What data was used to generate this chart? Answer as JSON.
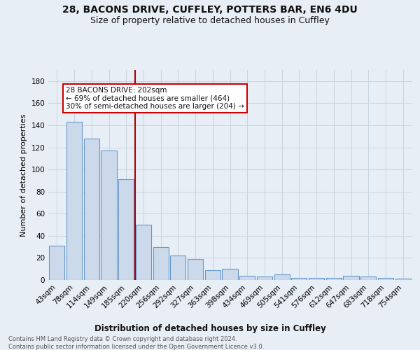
{
  "title1": "28, BACONS DRIVE, CUFFLEY, POTTERS BAR, EN6 4DU",
  "title2": "Size of property relative to detached houses in Cuffley",
  "xlabel": "Distribution of detached houses by size in Cuffley",
  "ylabel": "Number of detached properties",
  "categories": [
    "43sqm",
    "78sqm",
    "114sqm",
    "149sqm",
    "185sqm",
    "220sqm",
    "256sqm",
    "292sqm",
    "327sqm",
    "363sqm",
    "398sqm",
    "434sqm",
    "469sqm",
    "505sqm",
    "541sqm",
    "576sqm",
    "612sqm",
    "647sqm",
    "683sqm",
    "718sqm",
    "754sqm"
  ],
  "values": [
    31,
    143,
    128,
    117,
    91,
    50,
    30,
    22,
    19,
    9,
    10,
    4,
    3,
    5,
    2,
    2,
    2,
    4,
    3,
    2,
    1
  ],
  "bar_color": "#ccd9ea",
  "bar_edge_color": "#6699cc",
  "vline_index": 4.5,
  "vline_color": "#aa0000",
  "annotation_lines": [
    "28 BACONS DRIVE: 202sqm",
    "← 69% of detached houses are smaller (464)",
    "30% of semi-detached houses are larger (204) →"
  ],
  "annotation_box_facecolor": "#ffffff",
  "annotation_box_edgecolor": "#cc0000",
  "footer1": "Contains HM Land Registry data © Crown copyright and database right 2024.",
  "footer2": "Contains public sector information licensed under the Open Government Licence v3.0.",
  "ylim": [
    0,
    190
  ],
  "yticks": [
    0,
    20,
    40,
    60,
    80,
    100,
    120,
    140,
    160,
    180
  ],
  "fig_bg": "#e8eef6",
  "plot_bg": "#e8eef6",
  "grid_color": "#c8d4e0",
  "title1_fontsize": 10,
  "title2_fontsize": 9,
  "xlabel_fontsize": 8.5,
  "ylabel_fontsize": 8,
  "tick_fontsize": 7.5,
  "footer_fontsize": 6,
  "ann_fontsize": 7.5
}
